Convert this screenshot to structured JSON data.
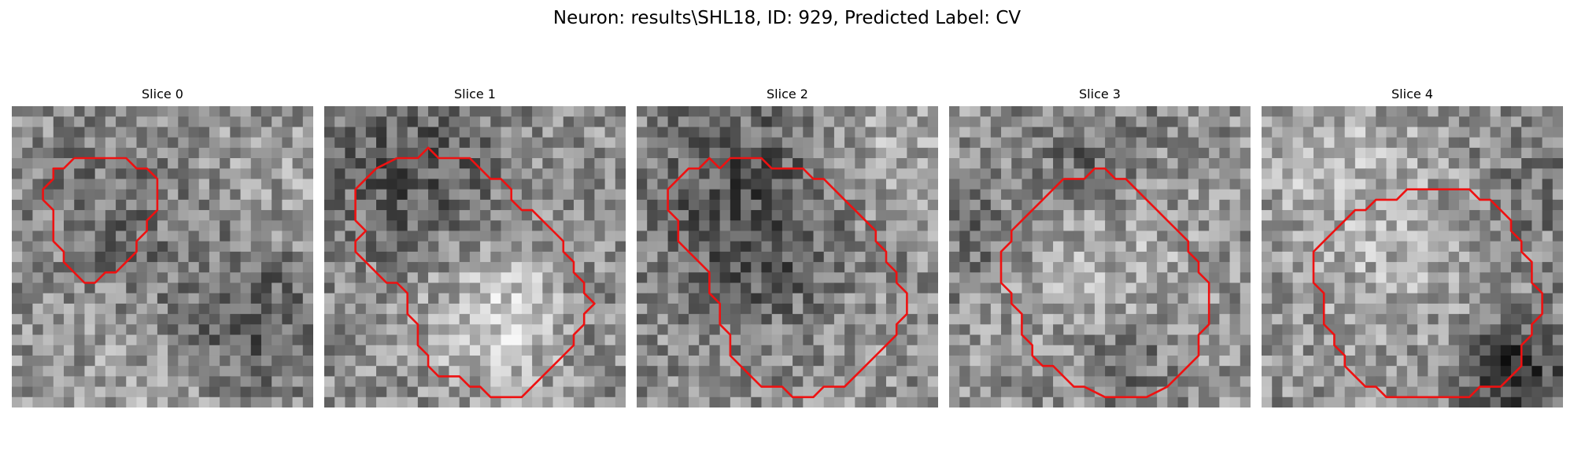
{
  "figure": {
    "title": "Neuron: results\\SHL18, ID: 929, Predicted Label: CV"
  },
  "panels": [
    {
      "title": "Slice 0",
      "outline_color": "#ee1111",
      "seed": 11,
      "blobs": [
        [
          22,
          20,
          5,
          -0.25
        ],
        [
          14,
          26,
          6,
          0.1
        ],
        [
          10,
          10,
          6,
          -0.12
        ],
        [
          24,
          8,
          6,
          0.06
        ]
      ],
      "outline": [
        [
          3,
          2
        ],
        [
          8,
          2
        ],
        [
          9,
          3
        ],
        [
          10,
          3
        ],
        [
          11,
          4
        ],
        [
          11,
          7
        ],
        [
          10,
          8
        ],
        [
          10,
          9
        ],
        [
          9,
          10
        ],
        [
          9,
          11
        ],
        [
          8,
          12
        ],
        [
          7,
          13
        ],
        [
          6,
          13
        ],
        [
          5,
          14
        ],
        [
          4,
          14
        ],
        [
          3,
          13
        ],
        [
          2,
          12
        ],
        [
          2,
          11
        ],
        [
          1,
          10
        ],
        [
          1,
          7
        ],
        [
          0,
          6
        ],
        [
          0,
          5
        ],
        [
          1,
          4
        ],
        [
          1,
          3
        ],
        [
          2,
          3
        ],
        [
          3,
          2
        ]
      ]
    },
    {
      "title": "Slice 1",
      "outline_color": "#ee1111",
      "seed": 23,
      "blobs": [
        [
          17,
          20,
          5,
          0.28
        ],
        [
          8,
          6,
          6,
          -0.22
        ],
        [
          24,
          20,
          4,
          -0.08
        ]
      ],
      "outline": [
        [
          4,
          2
        ],
        [
          6,
          2
        ],
        [
          7,
          1
        ],
        [
          8,
          2
        ],
        [
          11,
          2
        ],
        [
          12,
          3
        ],
        [
          13,
          4
        ],
        [
          14,
          4
        ],
        [
          15,
          5
        ],
        [
          15,
          6
        ],
        [
          16,
          7
        ],
        [
          17,
          7
        ],
        [
          18,
          8
        ],
        [
          19,
          9
        ],
        [
          20,
          10
        ],
        [
          20,
          11
        ],
        [
          21,
          12
        ],
        [
          21,
          13
        ],
        [
          22,
          14
        ],
        [
          22,
          15
        ],
        [
          23,
          16
        ],
        [
          22,
          17
        ],
        [
          22,
          18
        ],
        [
          21,
          19
        ],
        [
          21,
          20
        ],
        [
          20,
          21
        ],
        [
          19,
          22
        ],
        [
          18,
          23
        ],
        [
          17,
          24
        ],
        [
          16,
          25
        ],
        [
          13,
          25
        ],
        [
          12,
          24
        ],
        [
          11,
          24
        ],
        [
          10,
          23
        ],
        [
          8,
          23
        ],
        [
          7,
          22
        ],
        [
          7,
          21
        ],
        [
          6,
          20
        ],
        [
          6,
          18
        ],
        [
          5,
          17
        ],
        [
          5,
          15
        ],
        [
          4,
          14
        ],
        [
          3,
          14
        ],
        [
          2,
          13
        ],
        [
          1,
          12
        ],
        [
          0,
          11
        ],
        [
          0,
          10
        ],
        [
          1,
          9
        ],
        [
          0,
          8
        ],
        [
          0,
          5
        ],
        [
          1,
          4
        ],
        [
          2,
          3
        ],
        [
          4,
          2
        ]
      ]
    },
    {
      "title": "Slice 2",
      "outline_color": "#ee1111",
      "seed": 37,
      "blobs": [
        [
          10,
          8,
          7,
          -0.22
        ],
        [
          14,
          16,
          6,
          -0.1
        ],
        [
          23,
          5,
          4,
          0.16
        ],
        [
          20,
          20,
          5,
          0.06
        ]
      ],
      "outline": [
        [
          5,
          3
        ],
        [
          6,
          2
        ],
        [
          9,
          2
        ],
        [
          10,
          3
        ],
        [
          13,
          3
        ],
        [
          14,
          4
        ],
        [
          15,
          4
        ],
        [
          16,
          5
        ],
        [
          17,
          6
        ],
        [
          18,
          7
        ],
        [
          19,
          8
        ],
        [
          20,
          9
        ],
        [
          20,
          10
        ],
        [
          21,
          11
        ],
        [
          21,
          12
        ],
        [
          22,
          13
        ],
        [
          22,
          14
        ],
        [
          23,
          15
        ],
        [
          23,
          17
        ],
        [
          22,
          18
        ],
        [
          22,
          19
        ],
        [
          21,
          20
        ],
        [
          20,
          21
        ],
        [
          19,
          22
        ],
        [
          18,
          23
        ],
        [
          17,
          24
        ],
        [
          15,
          24
        ],
        [
          14,
          25
        ],
        [
          12,
          25
        ],
        [
          11,
          24
        ],
        [
          9,
          24
        ],
        [
          8,
          23
        ],
        [
          7,
          22
        ],
        [
          6,
          21
        ],
        [
          6,
          19
        ],
        [
          5,
          18
        ],
        [
          5,
          16
        ],
        [
          4,
          15
        ],
        [
          4,
          13
        ],
        [
          3,
          12
        ],
        [
          2,
          11
        ],
        [
          1,
          10
        ],
        [
          1,
          8
        ],
        [
          0,
          7
        ],
        [
          0,
          5
        ],
        [
          1,
          4
        ],
        [
          2,
          3
        ],
        [
          3,
          3
        ],
        [
          4,
          2
        ],
        [
          5,
          3
        ]
      ]
    },
    {
      "title": "Slice 3",
      "outline_color": "#ee1111",
      "seed": 41,
      "blobs": [
        [
          13,
          14,
          7,
          0.14
        ],
        [
          13,
          5,
          4,
          -0.2
        ],
        [
          2,
          12,
          4,
          -0.16
        ],
        [
          16,
          24,
          3,
          -0.18
        ]
      ],
      "outline": [
        [
          8,
          4
        ],
        [
          10,
          4
        ],
        [
          11,
          3
        ],
        [
          12,
          3
        ],
        [
          13,
          4
        ],
        [
          14,
          4
        ],
        [
          15,
          5
        ],
        [
          16,
          6
        ],
        [
          17,
          7
        ],
        [
          18,
          8
        ],
        [
          19,
          9
        ],
        [
          20,
          10
        ],
        [
          20,
          11
        ],
        [
          21,
          12
        ],
        [
          21,
          13
        ],
        [
          22,
          14
        ],
        [
          22,
          18
        ],
        [
          21,
          19
        ],
        [
          21,
          21
        ],
        [
          20,
          22
        ],
        [
          19,
          23
        ],
        [
          18,
          24
        ],
        [
          16,
          25
        ],
        [
          12,
          25
        ],
        [
          10,
          24
        ],
        [
          9,
          24
        ],
        [
          8,
          23
        ],
        [
          7,
          22
        ],
        [
          6,
          22
        ],
        [
          5,
          21
        ],
        [
          5,
          20
        ],
        [
          4,
          19
        ],
        [
          4,
          17
        ],
        [
          3,
          16
        ],
        [
          3,
          15
        ],
        [
          2,
          14
        ],
        [
          2,
          11
        ],
        [
          3,
          10
        ],
        [
          3,
          9
        ],
        [
          4,
          8
        ],
        [
          5,
          7
        ],
        [
          6,
          6
        ],
        [
          7,
          5
        ],
        [
          8,
          4
        ]
      ]
    },
    {
      "title": "Slice 4",
      "outline_color": "#ee1111",
      "seed": 53,
      "blobs": [
        [
          13,
          14,
          7,
          0.12
        ],
        [
          24,
          25,
          4,
          -0.34
        ],
        [
          25,
          8,
          4,
          -0.12
        ],
        [
          6,
          4,
          5,
          0.14
        ]
      ],
      "outline": [
        [
          12,
          5
        ],
        [
          17,
          5
        ],
        [
          18,
          6
        ],
        [
          19,
          6
        ],
        [
          20,
          7
        ],
        [
          21,
          8
        ],
        [
          21,
          9
        ],
        [
          22,
          10
        ],
        [
          22,
          11
        ],
        [
          23,
          12
        ],
        [
          23,
          14
        ],
        [
          24,
          15
        ],
        [
          24,
          17
        ],
        [
          23,
          18
        ],
        [
          23,
          19
        ],
        [
          22,
          20
        ],
        [
          22,
          22
        ],
        [
          21,
          23
        ],
        [
          20,
          24
        ],
        [
          18,
          24
        ],
        [
          17,
          25
        ],
        [
          9,
          25
        ],
        [
          8,
          24
        ],
        [
          7,
          24
        ],
        [
          6,
          23
        ],
        [
          5,
          22
        ],
        [
          5,
          21
        ],
        [
          4,
          20
        ],
        [
          4,
          19
        ],
        [
          3,
          18
        ],
        [
          3,
          15
        ],
        [
          2,
          14
        ],
        [
          2,
          11
        ],
        [
          3,
          10
        ],
        [
          4,
          9
        ],
        [
          5,
          8
        ],
        [
          6,
          7
        ],
        [
          7,
          7
        ],
        [
          8,
          6
        ],
        [
          10,
          6
        ],
        [
          11,
          5
        ],
        [
          12,
          5
        ]
      ]
    }
  ]
}
